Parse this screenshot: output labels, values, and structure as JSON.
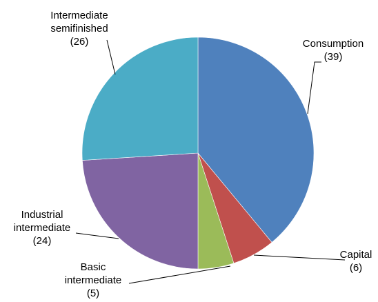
{
  "chart_data": {
    "type": "pie",
    "title": "",
    "start_angle_deg": 0,
    "direction": "clockwise",
    "slices": [
      {
        "label_lines": [
          "Consumption",
          "(39)"
        ],
        "name": "Consumption",
        "value": 39,
        "color": "#4F81BD"
      },
      {
        "label_lines": [
          "Capital",
          "(6)"
        ],
        "name": "Capital",
        "value": 6,
        "color": "#C0504D"
      },
      {
        "label_lines": [
          "Basic",
          "intermediate",
          "(5)"
        ],
        "name": "Basic intermediate",
        "value": 5,
        "color": "#9BBB59"
      },
      {
        "label_lines": [
          "Industrial",
          "intermediate",
          "(24)"
        ],
        "name": "Industrial intermediate",
        "value": 24,
        "color": "#8064A2"
      },
      {
        "label_lines": [
          "Intermediate",
          "semifinished",
          "(26)"
        ],
        "name": "Intermediate semifinished",
        "value": 26,
        "color": "#4BACC6"
      }
    ]
  }
}
